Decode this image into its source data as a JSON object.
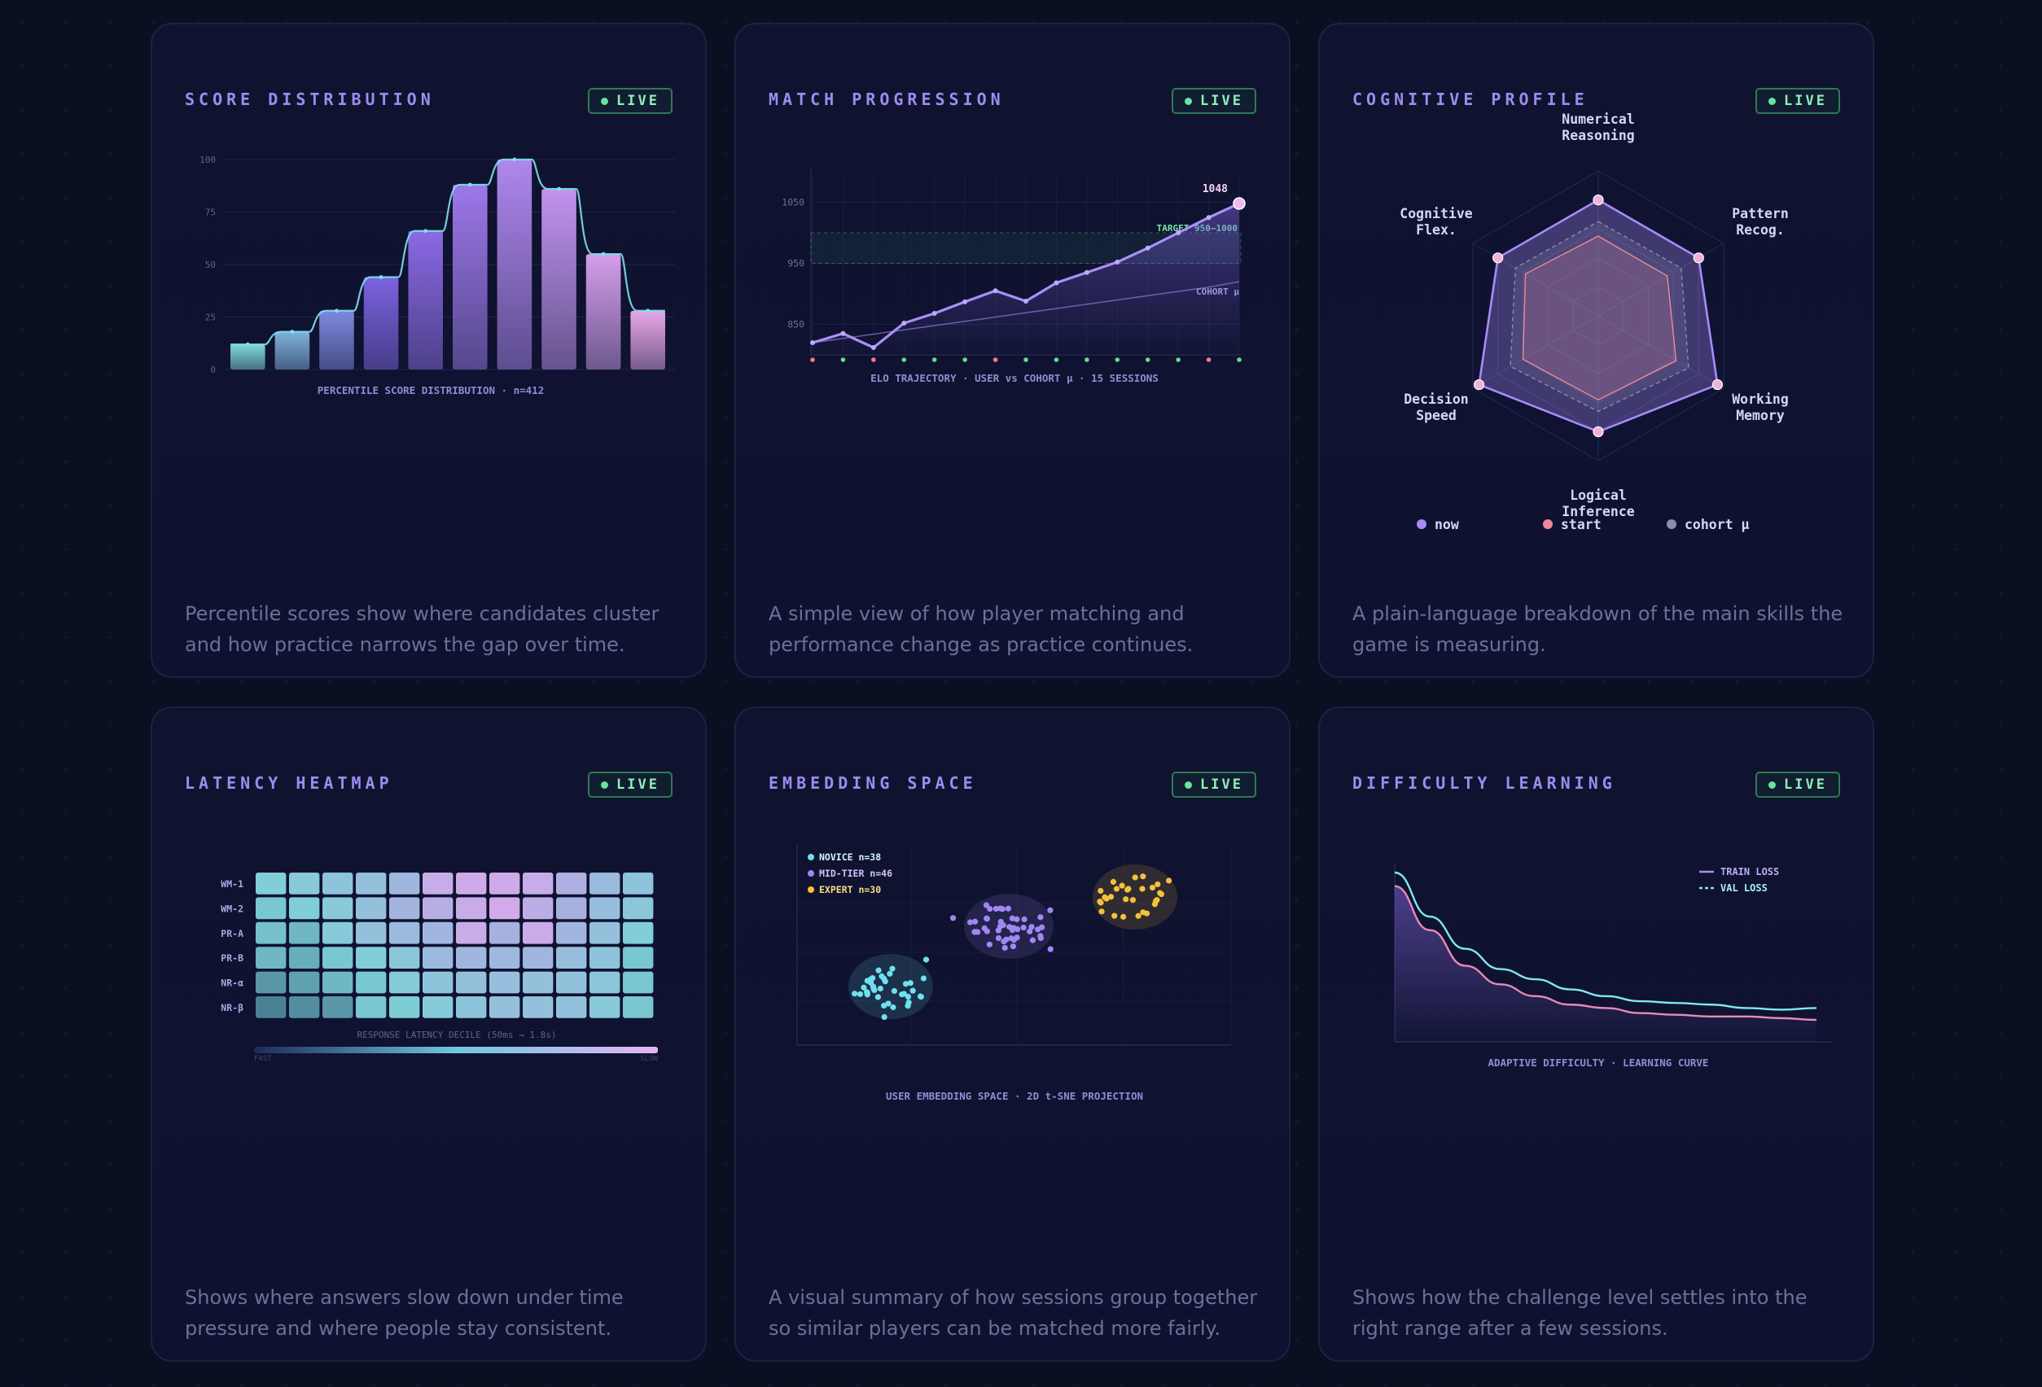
{
  "live_label": "LIVE",
  "cards": [
    {
      "title": "SCORE DISTRIBUTION",
      "desc": "Percentile scores show where candidates cluster and how practice narrows the gap over time."
    },
    {
      "title": "MATCH PROGRESSION",
      "desc": "A simple view of how player matching and performance change as practice continues."
    },
    {
      "title": "COGNITIVE PROFILE",
      "desc": "A plain-language breakdown of the main skills the game is measuring."
    },
    {
      "title": "LATENCY HEATMAP",
      "desc": "Shows where answers slow down under time pressure and where people stay consistent."
    },
    {
      "title": "EMBEDDING SPACE",
      "desc": "A visual summary of how sessions group together so similar players can be matched more fairly."
    },
    {
      "title": "DIFFICULTY LEARNING",
      "desc": "Shows how the challenge level settles into the right range after a few sessions."
    }
  ],
  "chart_data": [
    {
      "type": "bar",
      "caption": "PERCENTILE SCORE DISTRIBUTION · n=412",
      "y_ticks": [
        "0",
        "25",
        "50",
        "75",
        "100"
      ],
      "ylim": [
        0,
        100
      ],
      "values": [
        12,
        18,
        28,
        44,
        66,
        88,
        100,
        86,
        55,
        28
      ],
      "colors": {
        "low": "#7fd8d8",
        "mid": "#7c5ce0",
        "high": "#b48cf0",
        "tail": "#e8a8e8",
        "curve": "#7ee0f0"
      }
    },
    {
      "type": "line",
      "caption": "ELO TRAJECTORY · USER vs COHORT μ · 15 SESSIONS",
      "y_ticks": [
        "850",
        "950",
        "1050"
      ],
      "ylim": [
        800,
        1080
      ],
      "user": [
        820,
        835,
        812,
        852,
        868,
        887,
        905,
        888,
        918,
        935,
        952,
        975,
        1000,
        1025,
        1048
      ],
      "cohort": [
        820,
        827,
        834,
        841,
        848,
        855,
        862,
        869,
        876,
        883,
        890,
        897,
        904,
        911,
        920
      ],
      "target_band": [
        950,
        1000
      ],
      "target_label": "TARGET 950–1000",
      "cohort_label": "COHORT μ",
      "final_label": "1048",
      "session_markers": [
        "red",
        "green",
        "red",
        "green",
        "green",
        "green",
        "red",
        "green",
        "green",
        "green",
        "green",
        "green",
        "green",
        "red",
        "green"
      ]
    },
    {
      "type": "radar",
      "axes": [
        [
          "Numerical",
          "Reasoning"
        ],
        [
          "Pattern",
          "Recog."
        ],
        [
          "Working",
          "Memory"
        ],
        [
          "Logical",
          "Inference"
        ],
        [
          "Decision",
          "Speed"
        ],
        [
          "Cognitive",
          "Flex."
        ]
      ],
      "series": [
        {
          "name": "now",
          "values": [
            0.8,
            0.8,
            0.95,
            0.8,
            0.95,
            0.8
          ],
          "color": "#a78bfa"
        },
        {
          "name": "start",
          "values": [
            0.55,
            0.55,
            0.62,
            0.58,
            0.6,
            0.58
          ],
          "color": "#f0889a"
        },
        {
          "name": "cohort μ",
          "values": [
            0.65,
            0.66,
            0.72,
            0.66,
            0.7,
            0.66
          ],
          "color": "#8a8fa8"
        }
      ]
    },
    {
      "type": "heatmap",
      "rows": [
        "WM-1",
        "WM-2",
        "PR-A",
        "PR-B",
        "NR-α",
        "NR-β"
      ],
      "cols": 12,
      "caption": "RESPONSE LATENCY DECILE (50ms → 1.8s)",
      "scale_left": "FAST",
      "scale_right": "SLOW",
      "values": [
        [
          0.35,
          0.4,
          0.45,
          0.5,
          0.6,
          0.85,
          0.9,
          0.9,
          0.85,
          0.7,
          0.55,
          0.45
        ],
        [
          0.3,
          0.35,
          0.4,
          0.5,
          0.62,
          0.75,
          0.85,
          0.92,
          0.78,
          0.65,
          0.52,
          0.42
        ],
        [
          0.28,
          0.25,
          0.4,
          0.5,
          0.55,
          0.6,
          0.85,
          0.65,
          0.88,
          0.6,
          0.5,
          0.35
        ],
        [
          0.25,
          0.22,
          0.3,
          0.35,
          0.42,
          0.55,
          0.6,
          0.58,
          0.6,
          0.52,
          0.45,
          0.3
        ],
        [
          0.15,
          0.18,
          0.25,
          0.3,
          0.38,
          0.45,
          0.5,
          0.52,
          0.5,
          0.48,
          0.42,
          0.3
        ],
        [
          0.08,
          0.12,
          0.15,
          0.3,
          0.32,
          0.38,
          0.45,
          0.5,
          0.5,
          0.48,
          0.4,
          0.3
        ]
      ]
    },
    {
      "type": "scatter",
      "caption": "USER EMBEDDING SPACE · 2D t-SNE PROJECTION",
      "clusters": [
        {
          "name": "NOVICE n=38",
          "n": 38,
          "color": "#6fe0f0"
        },
        {
          "name": "MID-TIER n=46",
          "n": 46,
          "color": "#a187f5"
        },
        {
          "name": "EXPERT n=30",
          "n": 30,
          "color": "#f5c13a"
        }
      ]
    },
    {
      "type": "line",
      "caption": "ADAPTIVE DIFFICULTY · LEARNING CURVE",
      "series": [
        {
          "name": "TRAIN LOSS",
          "color": "#a78bfa"
        },
        {
          "name": "VAL LOSS",
          "color": "#7ee8f0"
        }
      ],
      "train": [
        0.92,
        0.66,
        0.45,
        0.34,
        0.27,
        0.22,
        0.2,
        0.17,
        0.16,
        0.15,
        0.15,
        0.14,
        0.13
      ],
      "val": [
        1.0,
        0.74,
        0.55,
        0.43,
        0.37,
        0.31,
        0.27,
        0.24,
        0.23,
        0.22,
        0.2,
        0.19,
        0.2
      ],
      "train_color": "#e88ab8"
    }
  ]
}
